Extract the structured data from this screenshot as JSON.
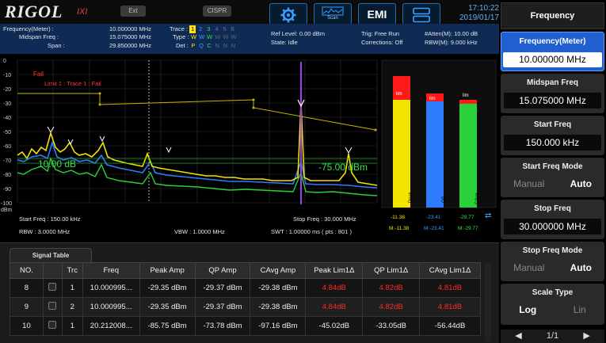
{
  "header": {
    "logo": "RIGOL",
    "logo_sub": "IXI",
    "ext_label": "Ext",
    "cispr_label": "CISPR",
    "scan_label": "Scan",
    "emi_label": "EMI",
    "time": "17:10:22",
    "date": "2019/01/17"
  },
  "info": {
    "freq_meter_label": "Frequency(Meter) :",
    "freq_meter_value": "10.000000 MHz",
    "midspan_label": "Midspan Freq :",
    "midspan_value": "15.075000 MHz",
    "span_label": "Span :",
    "span_value": "29.850000 MHz",
    "trace_label": "Trace :",
    "trace_nums": [
      "1",
      "2",
      "3",
      "4",
      "5",
      "6"
    ],
    "type_label": "Type :",
    "type_values": [
      "W",
      "W",
      "W",
      "W",
      "W",
      "W"
    ],
    "det_label": "Det :",
    "det_values": [
      "P",
      "Q",
      "C",
      "N",
      "N",
      "N"
    ],
    "ref_level": "Ref Level: 0.00 dBm",
    "state": "State: Idle",
    "trig": "Trig: Free Run",
    "corrections": "Corrections: Off",
    "atten": "#Atten(M): 10.00 dB",
    "rbw_m": "RBW(M): 9.000 kHz"
  },
  "plot": {
    "yticks": [
      "0",
      "-10",
      "-20",
      "-30",
      "-40",
      "-50",
      "-60",
      "-70",
      "-80",
      "-90",
      "-100"
    ],
    "unit": "dBm",
    "fail_text": "Fail",
    "limit_text": "Limit 1 : Trace 1 : Fail",
    "left_readout": "10.00 dB",
    "right_readout": "-75.00 dBm"
  },
  "bars": {
    "peak_label": "Peak",
    "qp_label": "QP",
    "cavg_label": "CAvg",
    "lim_label": "lim",
    "peak_val": "-11.38",
    "qp_val": "-23.41",
    "cavg_val": "-29.77",
    "peak_m": "M:-11.38",
    "qp_m": "M:-23.41",
    "cavg_m": "M:-29.77"
  },
  "footer": {
    "start_freq": "Start Freq : 150.00 kHz",
    "rbw": "RBW : 3.0000 MHz",
    "vbw": "VBW : 1.0000 MHz",
    "stop_freq": "Stop Freq : 30.000 MHz",
    "swt": "SWT : 1.00000 ms ( pts : 801 )"
  },
  "signal_table": {
    "tab_label": "Signal Table",
    "columns": [
      "NO.",
      "",
      "Trc",
      "Freq",
      "Peak Amp",
      "QP Amp",
      "CAvg Amp",
      "Peak Lim1Δ",
      "QP Lim1Δ",
      "CAvg Lim1Δ"
    ],
    "rows": [
      {
        "no": "8",
        "trc": "1",
        "freq": "10.000995...",
        "peak": "-29.35 dBm",
        "qp": "-29.37 dBm",
        "cavg": "-29.38 dBm",
        "pl": "4.84dB",
        "ql": "4.82dB",
        "cl": "4.81dB"
      },
      {
        "no": "9",
        "trc": "2",
        "freq": "10.000995...",
        "peak": "-29.35 dBm",
        "qp": "-29.37 dBm",
        "cavg": "-29.38 dBm",
        "pl": "4.84dB",
        "ql": "4.82dB",
        "cl": "4.81dB"
      },
      {
        "no": "10",
        "trc": "1",
        "freq": "20.212008...",
        "peak": "-85.75 dBm",
        "qp": "-73.78 dBm",
        "cavg": "-97.16 dBm",
        "pl": "-45.02dB",
        "ql": "-33.05dB",
        "cl": "-56.44dB"
      }
    ]
  },
  "menu": {
    "title": "Frequency",
    "freq_meter_title": "Frequency(Meter)",
    "freq_meter_value": "10.000000 MHz",
    "midspan_title": "Midspan Freq",
    "midspan_value": "15.075000 MHz",
    "start_title": "Start Freq",
    "start_value": "150.000 kHz",
    "start_mode_title": "Start Freq Mode",
    "manual": "Manual",
    "auto": "Auto",
    "stop_title": "Stop Freq",
    "stop_value": "30.000000 MHz",
    "stop_mode_title": "Stop Freq Mode",
    "scale_title": "Scale Type",
    "log": "Log",
    "lin": "Lin",
    "page": "1/1",
    "prev": "◀",
    "next": "▶"
  }
}
